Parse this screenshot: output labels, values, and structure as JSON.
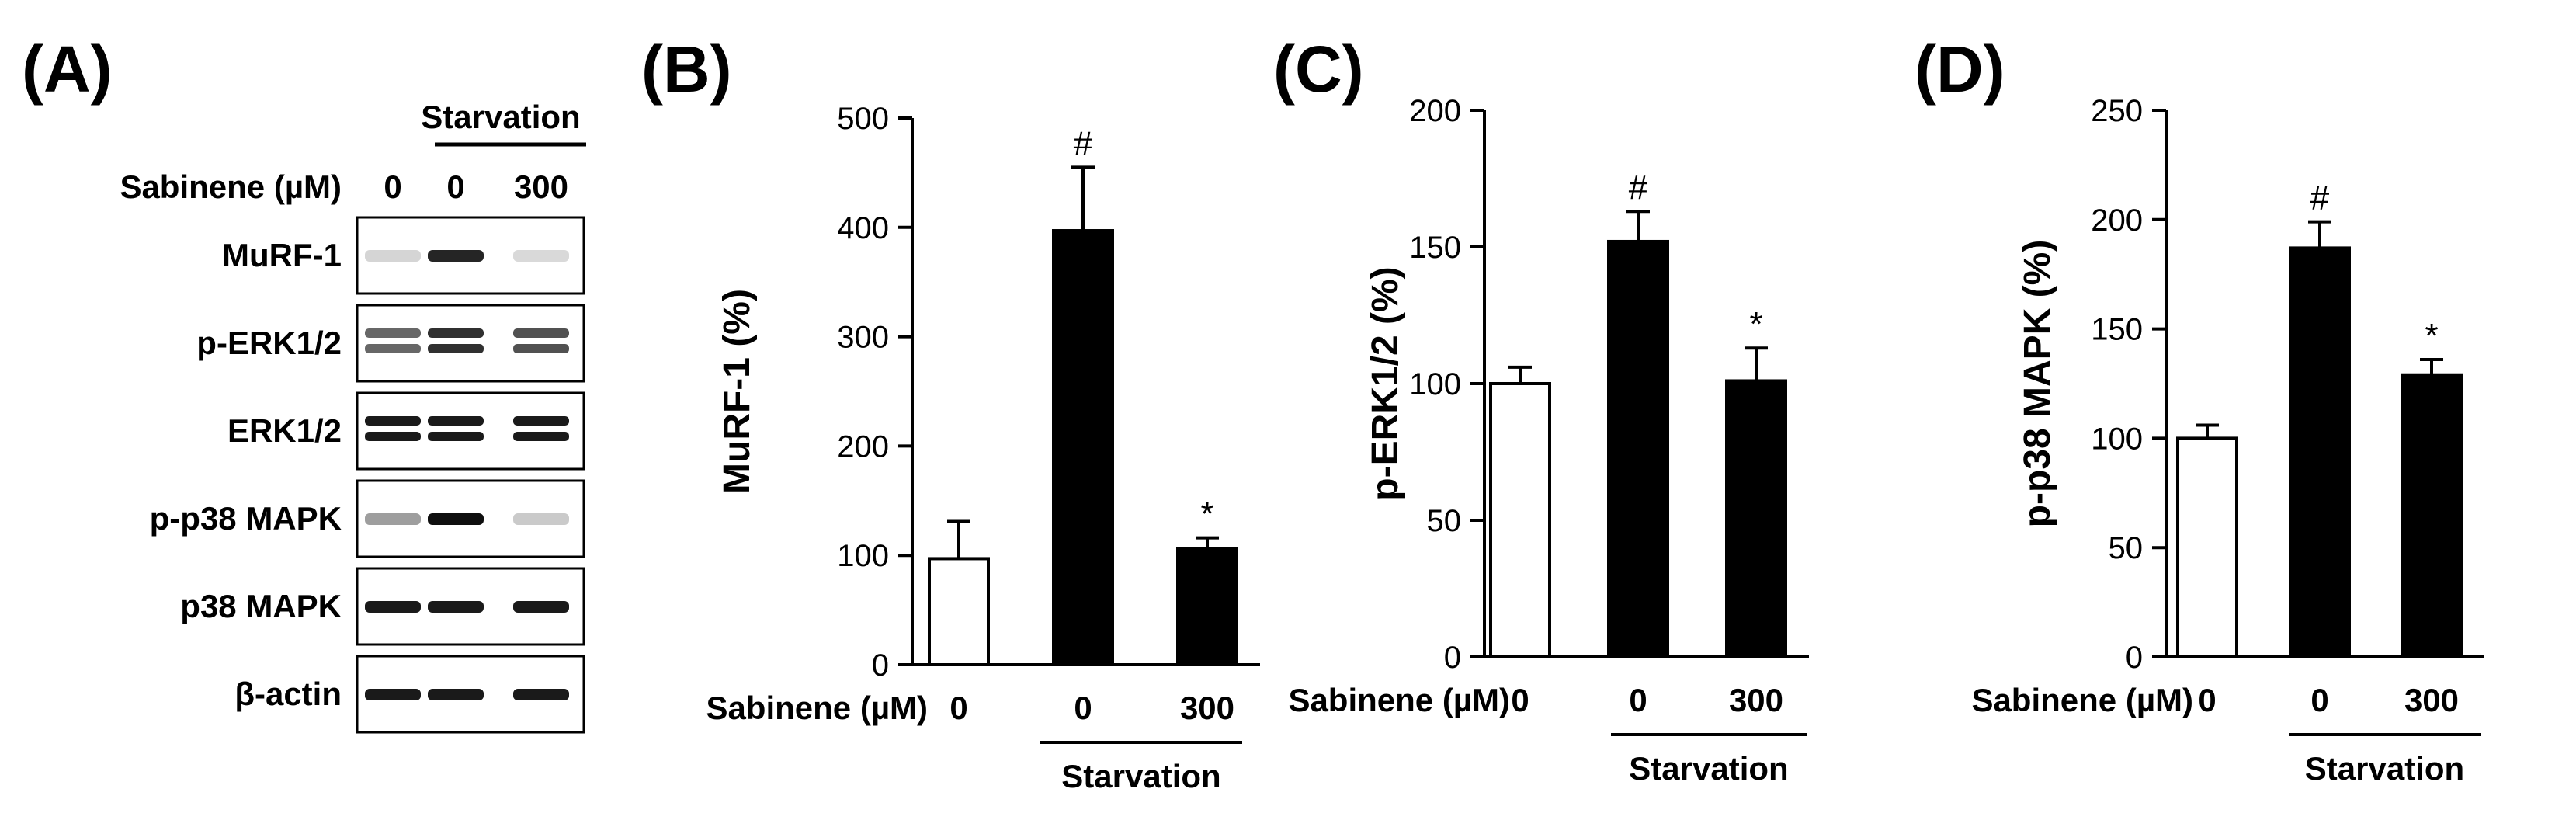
{
  "blot": {
    "panel_label": "(A)",
    "treatment_label": "Sabinene (µM)",
    "doses": [
      "0",
      "0",
      "300"
    ],
    "group_label": "Starvation",
    "rows": [
      {
        "label": "MuRF-1",
        "bands": [
          0.1,
          0.9,
          0.08
        ],
        "double": false
      },
      {
        "label": "p-ERK1/2",
        "bands": [
          0.6,
          0.85,
          0.7
        ],
        "double": true
      },
      {
        "label": "ERK1/2",
        "bands": [
          0.95,
          0.95,
          0.95
        ],
        "double": true
      },
      {
        "label": "p-p38 MAPK",
        "bands": [
          0.35,
          1.0,
          0.15
        ],
        "double": false
      },
      {
        "label": "p38 MAPK",
        "bands": [
          0.95,
          0.95,
          0.95
        ],
        "double": false
      },
      {
        "label": "β-actin",
        "bands": [
          0.95,
          0.95,
          0.95
        ],
        "double": false
      }
    ]
  },
  "chart_data": [
    {
      "type": "bar",
      "panel_label": "(B)",
      "ylabel": "MuRF-1 (%)",
      "ylim": [
        0,
        500
      ],
      "yticks": [
        0,
        100,
        200,
        300,
        400,
        500
      ],
      "categories": [
        "0",
        "0",
        "300"
      ],
      "values": [
        97,
        397,
        106
      ],
      "errors": [
        34,
        58,
        10
      ],
      "bar_fill": [
        "#ffffff",
        "#000000",
        "#000000"
      ],
      "markers": [
        "",
        "#",
        "*"
      ],
      "xlabel_prefix": "Sabinene (µM)",
      "group_label": "Starvation"
    },
    {
      "type": "bar",
      "panel_label": "(C)",
      "ylabel": "p-ERK1/2 (%)",
      "ylim": [
        0,
        200
      ],
      "yticks": [
        0,
        50,
        100,
        150,
        200
      ],
      "categories": [
        "0",
        "0",
        "300"
      ],
      "values": [
        100,
        152,
        101
      ],
      "errors": [
        6,
        11,
        12
      ],
      "bar_fill": [
        "#ffffff",
        "#000000",
        "#000000"
      ],
      "markers": [
        "",
        "#",
        "*"
      ],
      "xlabel_prefix": "Sabinene (µM)",
      "group_label": "Starvation"
    },
    {
      "type": "bar",
      "panel_label": "(D)",
      "ylabel": "p-p38 MAPK (%)",
      "ylim": [
        0,
        250
      ],
      "yticks": [
        0,
        50,
        100,
        150,
        200,
        250
      ],
      "categories": [
        "0",
        "0",
        "300"
      ],
      "values": [
        100,
        187,
        129
      ],
      "errors": [
        6,
        12,
        7
      ],
      "bar_fill": [
        "#ffffff",
        "#000000",
        "#000000"
      ],
      "markers": [
        "",
        "#",
        "*"
      ],
      "xlabel_prefix": "Sabinene (µM)",
      "group_label": "Starvation"
    }
  ]
}
